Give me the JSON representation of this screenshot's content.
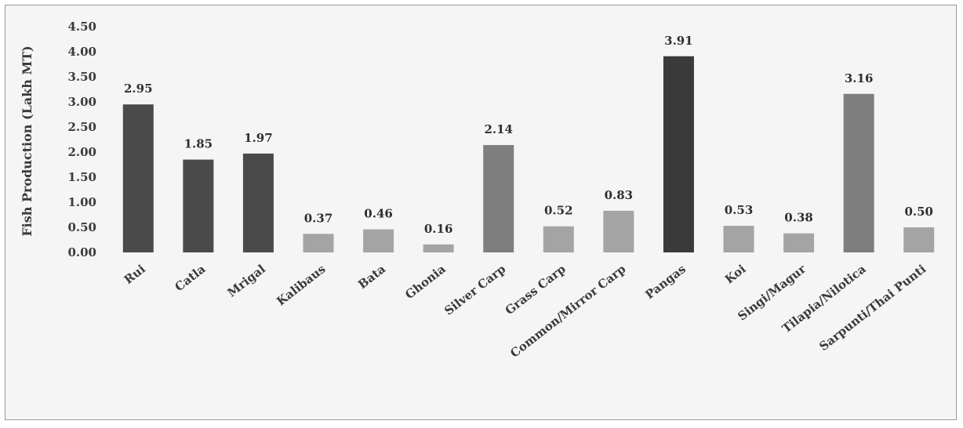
{
  "chart_data": {
    "type": "bar",
    "title": "",
    "xlabel": "",
    "ylabel": "Fish Production (Lakh MT)",
    "ylim": [
      0,
      4.5
    ],
    "yticks": [
      "0.00",
      "0.50",
      "1.00",
      "1.50",
      "2.00",
      "2.50",
      "3.00",
      "3.50",
      "4.00",
      "4.50"
    ],
    "categories": [
      "Rui",
      "Catla",
      "Mrigal",
      "Kalibaus",
      "Bata",
      "Ghonia",
      "Silver Carp",
      "Grass Carp",
      "Common/Mirror Carp",
      "Pangas",
      "Koi",
      "Singi/Magur",
      "Tilapia/Nilotica",
      "Sarpunti/Thai Punti"
    ],
    "values": [
      2.95,
      1.85,
      1.97,
      0.37,
      0.46,
      0.16,
      2.14,
      0.52,
      0.83,
      3.91,
      0.53,
      0.38,
      3.16,
      0.5
    ],
    "value_labels": [
      "2.95",
      "1.85",
      "1.97",
      "0.37",
      "0.46",
      "0.16",
      "2.14",
      "0.52",
      "0.83",
      "3.91",
      "0.53",
      "0.38",
      "3.16",
      "0.50"
    ],
    "bar_colors": [
      "#4a4a4a",
      "#4a4a4a",
      "#4a4a4a",
      "#a4a4a4",
      "#a4a4a4",
      "#a4a4a4",
      "#7e7e7e",
      "#a4a4a4",
      "#a4a4a4",
      "#3a3a3a",
      "#a4a4a4",
      "#a4a4a4",
      "#7e7e7e",
      "#a4a4a4"
    ],
    "grid": false,
    "legend": "none"
  }
}
